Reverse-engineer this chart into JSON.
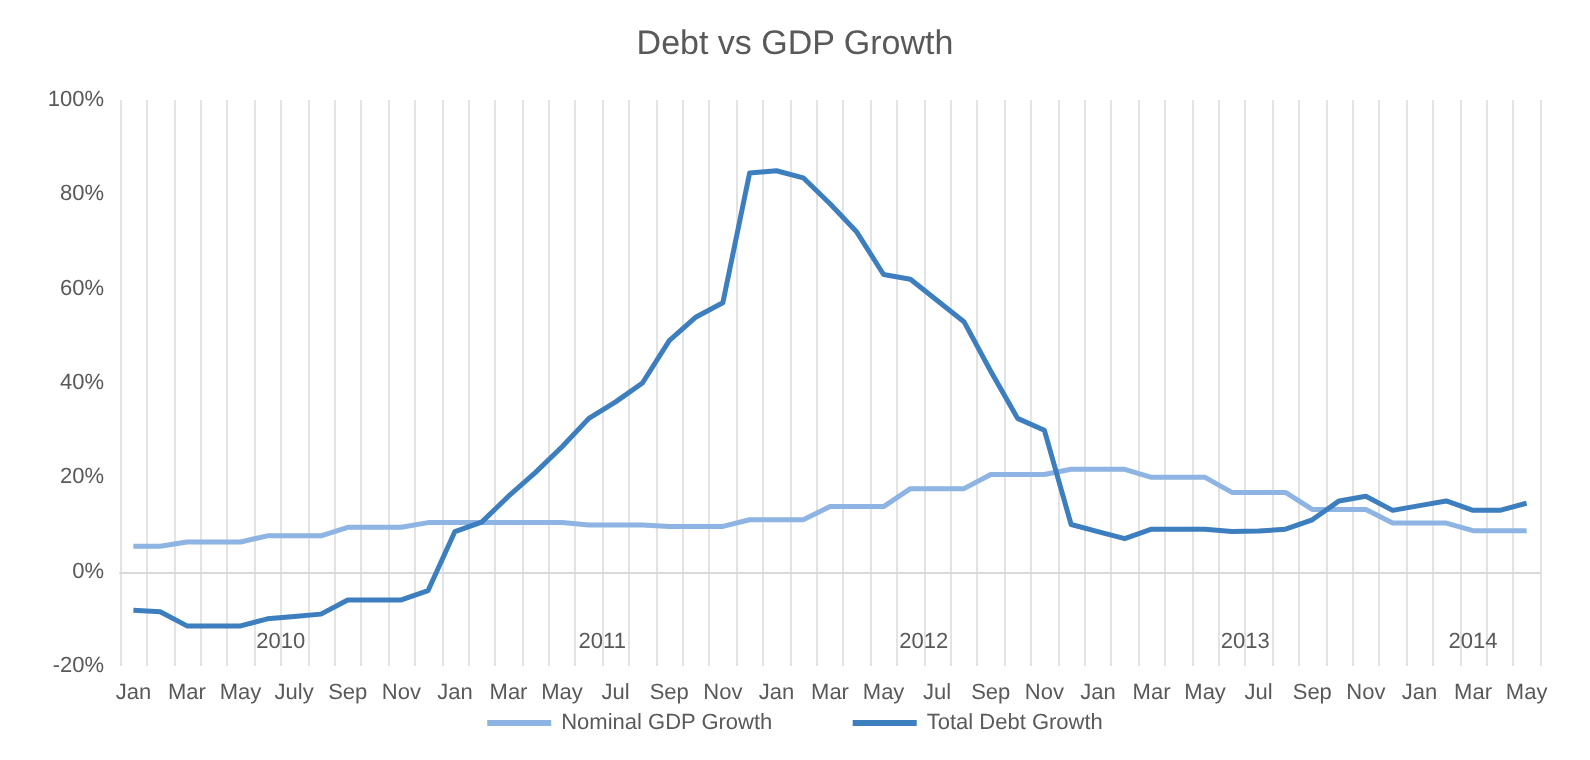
{
  "chart_data": {
    "type": "line",
    "title": "Debt vs GDP Growth",
    "categories": [
      "Jan",
      null,
      "Mar",
      null,
      "May",
      null,
      "July",
      null,
      "Sep",
      null,
      "Nov",
      null,
      "Jan",
      null,
      "Mar",
      null,
      "May",
      null,
      "Jul",
      null,
      "Sep",
      null,
      "Nov",
      null,
      "Jan",
      null,
      "Mar",
      null,
      "May",
      null,
      "Jul",
      null,
      "Sep",
      null,
      "Nov",
      null,
      "Jan",
      null,
      "Mar",
      null,
      "May",
      null,
      "Jul",
      null,
      "Sep",
      null,
      "Nov",
      null,
      "Jan",
      null,
      "Mar",
      null,
      "May"
    ],
    "series": [
      {
        "name": "Nominal GDP Growth",
        "color": "#8db4e2",
        "values": [
          5.4,
          5.4,
          6.3,
          6.3,
          6.3,
          7.6,
          7.6,
          7.6,
          9.4,
          9.4,
          9.4,
          10.4,
          10.4,
          10.4,
          10.4,
          10.4,
          10.4,
          9.9,
          9.9,
          9.9,
          9.6,
          9.6,
          9.6,
          11,
          11,
          11,
          13.8,
          13.8,
          13.8,
          17.6,
          17.6,
          17.6,
          20.6,
          20.6,
          20.6,
          21.7,
          21.7,
          21.7,
          20,
          20,
          20,
          16.8,
          16.8,
          16.8,
          13.2,
          13.2,
          13.2,
          10.3,
          10.3,
          10.3,
          8.7,
          8.7,
          8.7
        ]
      },
      {
        "name": "Total Debt Growth",
        "color": "#3d7ebf",
        "values": [
          -8.2,
          -8.5,
          -11.5,
          -11.5,
          -11.5,
          -10,
          -9.5,
          -9,
          -6,
          -6,
          -6,
          -4,
          8.5,
          10.5,
          16,
          21,
          26.5,
          32.5,
          36,
          40,
          49,
          54,
          57,
          84.5,
          85,
          83.5,
          78,
          72,
          63,
          62,
          57.5,
          53,
          42.5,
          32.5,
          30,
          10,
          8.5,
          7,
          9,
          9,
          9,
          8.5,
          8.6,
          9,
          11,
          15,
          16,
          13,
          14,
          15,
          13,
          13,
          14.5
        ]
      }
    ],
    "ylim": [
      -20,
      100
    ],
    "yticks": [
      {
        "value": -20,
        "label": "-20%"
      },
      {
        "value": 0,
        "label": "0%"
      },
      {
        "value": 20,
        "label": "20%"
      },
      {
        "value": 40,
        "label": "40%"
      },
      {
        "value": 60,
        "label": "60%"
      },
      {
        "value": 80,
        "label": "80%"
      },
      {
        "value": 100,
        "label": "100%"
      }
    ],
    "annotations": [
      "2010",
      "2011",
      "2012",
      "2013",
      "2014"
    ],
    "grid": "x",
    "legend": "bottom",
    "marker": "none",
    "line_style": "solid"
  }
}
